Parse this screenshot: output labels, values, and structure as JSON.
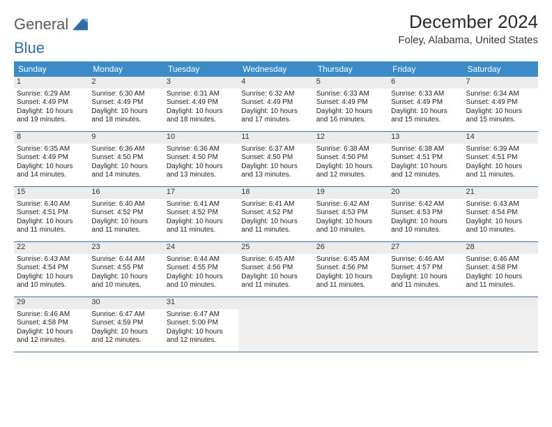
{
  "brand": {
    "word_prefix": "General",
    "word_suffix": "Blue"
  },
  "title": "December 2024",
  "location": "Foley, Alabama, United States",
  "colors": {
    "header_bg": "#3b8bc8",
    "daynum_bg": "#ececec",
    "week_border": "#3a6ea5",
    "brand_gray": "#5a5a5a",
    "brand_blue": "#2f6fa7",
    "logo_icon": "#2f6fa7"
  },
  "type": "table",
  "layout": {
    "cols": 7,
    "rows": 5,
    "col_width_pct": 14.285
  },
  "fonts": {
    "month_title_pt": 26,
    "location_pt": 15,
    "weekday_pt": 12,
    "daynum_pt": 11,
    "body_pt": 10
  },
  "weekdays": [
    "Sunday",
    "Monday",
    "Tuesday",
    "Wednesday",
    "Thursday",
    "Friday",
    "Saturday"
  ],
  "days": [
    {
      "n": 1,
      "sunrise": "6:29 AM",
      "sunset": "4:49 PM",
      "daylight": "10 hours and 19 minutes."
    },
    {
      "n": 2,
      "sunrise": "6:30 AM",
      "sunset": "4:49 PM",
      "daylight": "10 hours and 18 minutes."
    },
    {
      "n": 3,
      "sunrise": "6:31 AM",
      "sunset": "4:49 PM",
      "daylight": "10 hours and 18 minutes."
    },
    {
      "n": 4,
      "sunrise": "6:32 AM",
      "sunset": "4:49 PM",
      "daylight": "10 hours and 17 minutes."
    },
    {
      "n": 5,
      "sunrise": "6:33 AM",
      "sunset": "4:49 PM",
      "daylight": "10 hours and 16 minutes."
    },
    {
      "n": 6,
      "sunrise": "6:33 AM",
      "sunset": "4:49 PM",
      "daylight": "10 hours and 15 minutes."
    },
    {
      "n": 7,
      "sunrise": "6:34 AM",
      "sunset": "4:49 PM",
      "daylight": "10 hours and 15 minutes."
    },
    {
      "n": 8,
      "sunrise": "6:35 AM",
      "sunset": "4:49 PM",
      "daylight": "10 hours and 14 minutes."
    },
    {
      "n": 9,
      "sunrise": "6:36 AM",
      "sunset": "4:50 PM",
      "daylight": "10 hours and 14 minutes."
    },
    {
      "n": 10,
      "sunrise": "6:36 AM",
      "sunset": "4:50 PM",
      "daylight": "10 hours and 13 minutes."
    },
    {
      "n": 11,
      "sunrise": "6:37 AM",
      "sunset": "4:50 PM",
      "daylight": "10 hours and 13 minutes."
    },
    {
      "n": 12,
      "sunrise": "6:38 AM",
      "sunset": "4:50 PM",
      "daylight": "10 hours and 12 minutes."
    },
    {
      "n": 13,
      "sunrise": "6:38 AM",
      "sunset": "4:51 PM",
      "daylight": "10 hours and 12 minutes."
    },
    {
      "n": 14,
      "sunrise": "6:39 AM",
      "sunset": "4:51 PM",
      "daylight": "10 hours and 11 minutes."
    },
    {
      "n": 15,
      "sunrise": "6:40 AM",
      "sunset": "4:51 PM",
      "daylight": "10 hours and 11 minutes."
    },
    {
      "n": 16,
      "sunrise": "6:40 AM",
      "sunset": "4:52 PM",
      "daylight": "10 hours and 11 minutes."
    },
    {
      "n": 17,
      "sunrise": "6:41 AM",
      "sunset": "4:52 PM",
      "daylight": "10 hours and 11 minutes."
    },
    {
      "n": 18,
      "sunrise": "6:41 AM",
      "sunset": "4:52 PM",
      "daylight": "10 hours and 11 minutes."
    },
    {
      "n": 19,
      "sunrise": "6:42 AM",
      "sunset": "4:53 PM",
      "daylight": "10 hours and 10 minutes."
    },
    {
      "n": 20,
      "sunrise": "6:42 AM",
      "sunset": "4:53 PM",
      "daylight": "10 hours and 10 minutes."
    },
    {
      "n": 21,
      "sunrise": "6:43 AM",
      "sunset": "4:54 PM",
      "daylight": "10 hours and 10 minutes."
    },
    {
      "n": 22,
      "sunrise": "6:43 AM",
      "sunset": "4:54 PM",
      "daylight": "10 hours and 10 minutes."
    },
    {
      "n": 23,
      "sunrise": "6:44 AM",
      "sunset": "4:55 PM",
      "daylight": "10 hours and 10 minutes."
    },
    {
      "n": 24,
      "sunrise": "6:44 AM",
      "sunset": "4:55 PM",
      "daylight": "10 hours and 10 minutes."
    },
    {
      "n": 25,
      "sunrise": "6:45 AM",
      "sunset": "4:56 PM",
      "daylight": "10 hours and 11 minutes."
    },
    {
      "n": 26,
      "sunrise": "6:45 AM",
      "sunset": "4:56 PM",
      "daylight": "10 hours and 11 minutes."
    },
    {
      "n": 27,
      "sunrise": "6:46 AM",
      "sunset": "4:57 PM",
      "daylight": "10 hours and 11 minutes."
    },
    {
      "n": 28,
      "sunrise": "6:46 AM",
      "sunset": "4:58 PM",
      "daylight": "10 hours and 11 minutes."
    },
    {
      "n": 29,
      "sunrise": "6:46 AM",
      "sunset": "4:58 PM",
      "daylight": "10 hours and 12 minutes."
    },
    {
      "n": 30,
      "sunrise": "6:47 AM",
      "sunset": "4:59 PM",
      "daylight": "10 hours and 12 minutes."
    },
    {
      "n": 31,
      "sunrise": "6:47 AM",
      "sunset": "5:00 PM",
      "daylight": "10 hours and 12 minutes."
    }
  ],
  "labels": {
    "sunrise_prefix": "Sunrise: ",
    "sunset_prefix": "Sunset: ",
    "daylight_prefix": "Daylight: "
  },
  "first_weekday_index": 0,
  "trailing_empty": 4
}
